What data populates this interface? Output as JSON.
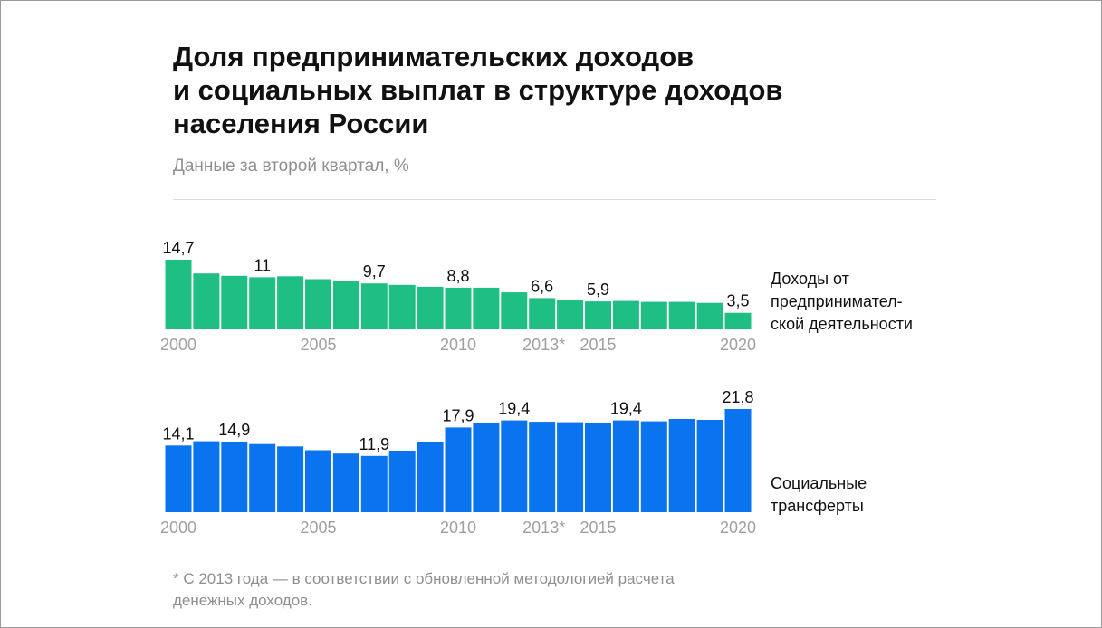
{
  "title_lines": [
    "Доля предпринимательских доходов",
    "и социальных выплат в структуре доходов",
    "населения России"
  ],
  "subtitle": "Данные за второй квартал, %",
  "footnote_lines": [
    "* С 2013 года — в соответствии с обновленной методологией расчета",
    "денежных доходов."
  ],
  "chart_data": [
    {
      "type": "bar",
      "series_label_lines": [
        "Доходы от",
        "предпринимател-",
        "ской деятельности"
      ],
      "color": "#1fbf83",
      "x": [
        2000,
        2001,
        2002,
        2003,
        2004,
        2005,
        2006,
        2007,
        2008,
        2009,
        2010,
        2011,
        2012,
        2013,
        2014,
        2015,
        2016,
        2017,
        2018,
        2019,
        2020
      ],
      "values": [
        14.7,
        11.8,
        11.3,
        11.0,
        11.2,
        10.6,
        10.2,
        9.7,
        9.4,
        9.0,
        8.8,
        8.8,
        7.8,
        6.6,
        6.1,
        5.9,
        6.0,
        5.8,
        5.8,
        5.6,
        3.5
      ],
      "data_labels": [
        {
          "x": 2000,
          "text": "14,7"
        },
        {
          "x": 2003,
          "text": "11"
        },
        {
          "x": 2007,
          "text": "9,7"
        },
        {
          "x": 2010,
          "text": "8,8"
        },
        {
          "x": 2013,
          "text": "6,6"
        },
        {
          "x": 2015,
          "text": "5,9"
        },
        {
          "x": 2020,
          "text": "3,5"
        }
      ],
      "x_tick_labels": [
        {
          "x": 2000,
          "text": "2000"
        },
        {
          "x": 2005,
          "text": "2005"
        },
        {
          "x": 2010,
          "text": "2010"
        },
        {
          "x": 2013,
          "text": "2013*"
        },
        {
          "x": 2015,
          "text": "2015"
        },
        {
          "x": 2020,
          "text": "2020"
        }
      ],
      "ylim": [
        0,
        14.7
      ],
      "grid": false
    },
    {
      "type": "bar",
      "series_label_lines": [
        "Социальные",
        "трансферты"
      ],
      "color": "#0a73f0",
      "x": [
        2000,
        2001,
        2002,
        2003,
        2004,
        2005,
        2006,
        2007,
        2008,
        2009,
        2010,
        2011,
        2012,
        2013,
        2014,
        2015,
        2016,
        2017,
        2018,
        2019,
        2020
      ],
      "values": [
        14.1,
        15.0,
        14.9,
        14.4,
        13.9,
        13.1,
        12.4,
        11.9,
        13.0,
        14.8,
        17.9,
        18.8,
        19.4,
        19.1,
        19.0,
        18.8,
        19.4,
        19.2,
        19.7,
        19.5,
        21.8
      ],
      "data_labels": [
        {
          "x": 2000,
          "text": "14,1"
        },
        {
          "x": 2002,
          "text": "14,9"
        },
        {
          "x": 2007,
          "text": "11,9"
        },
        {
          "x": 2010,
          "text": "17,9"
        },
        {
          "x": 2012,
          "text": "19,4"
        },
        {
          "x": 2016,
          "text": "19,4"
        },
        {
          "x": 2020,
          "text": "21,8"
        }
      ],
      "x_tick_labels": [
        {
          "x": 2000,
          "text": "2000"
        },
        {
          "x": 2005,
          "text": "2005"
        },
        {
          "x": 2010,
          "text": "2010"
        },
        {
          "x": 2013,
          "text": "2013*"
        },
        {
          "x": 2015,
          "text": "2015"
        },
        {
          "x": 2020,
          "text": "2020"
        }
      ],
      "ylim": [
        0,
        21.8
      ],
      "grid": false
    }
  ],
  "colors": {
    "title": "#111111",
    "muted": "#8f8f8f",
    "divider": "#dcdcdc",
    "tick": "#a0a0a0"
  }
}
